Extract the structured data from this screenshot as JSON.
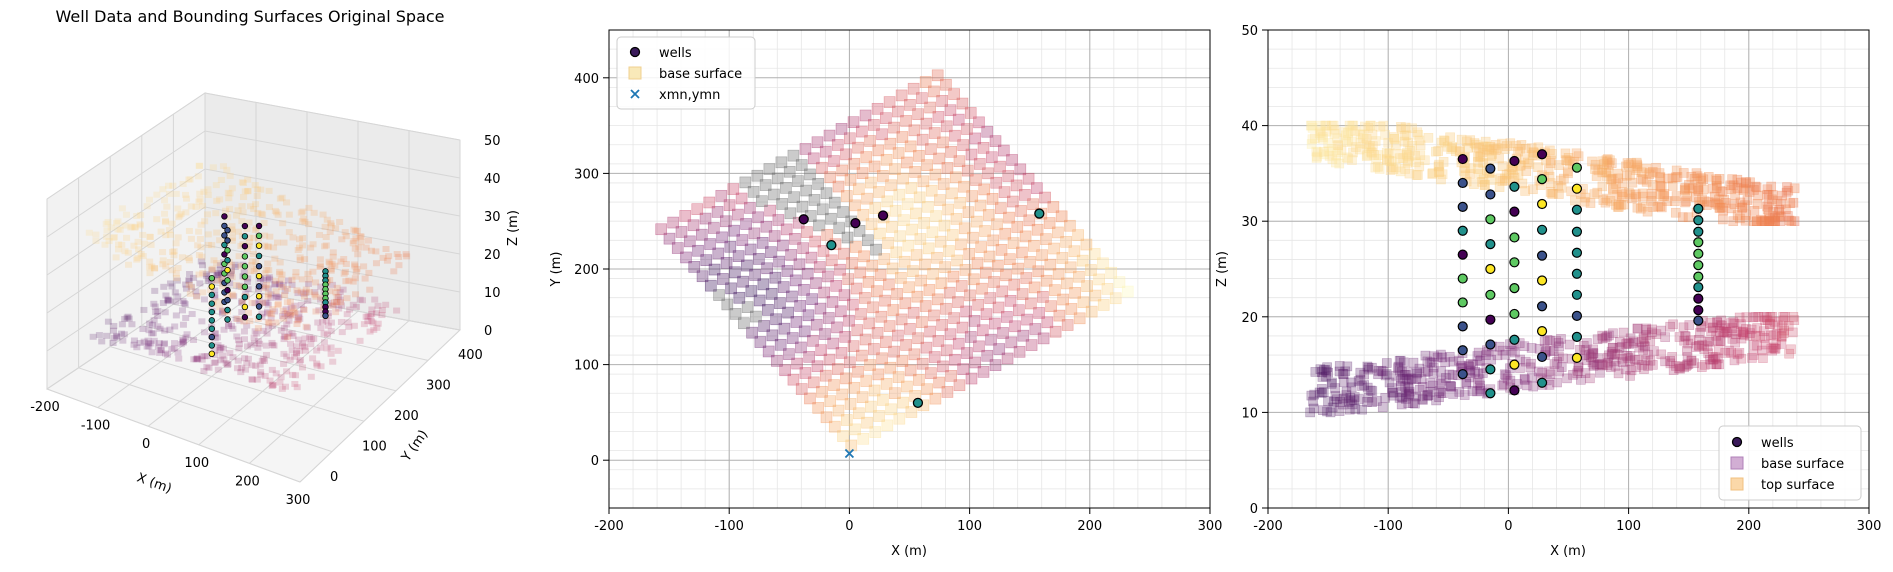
{
  "colors": {
    "base_points": "#f0d8c4",
    "well_cmap": [
      "#440154",
      "#3b528b",
      "#21918c",
      "#5ec962",
      "#fde725"
    ],
    "xmn_marker": "#1f77b4",
    "grid": "#b0b0b0",
    "grid_minor": "#e6e6e6"
  },
  "chart_data": [
    {
      "id": "panel-3d",
      "type": "scatter",
      "title": "Well Data and Bounding Surfaces Original Space",
      "xlabel": "X (m)",
      "ylabel": "Y (m)",
      "zlabel": "Z (m)",
      "xlim": [
        -200,
        300
      ],
      "ylim": [
        -50,
        450
      ],
      "zlim": [
        0,
        50
      ],
      "x_ticks": [
        "-200",
        "-100",
        "0",
        "100",
        "200",
        "300"
      ],
      "y_ticks": [
        "0",
        "100",
        "200",
        "300",
        "400"
      ],
      "z_ticks": [
        "0",
        "10",
        "20",
        "30",
        "40",
        "50"
      ],
      "grid": true
    },
    {
      "id": "panel-plan",
      "type": "scatter",
      "xlabel": "X (m)",
      "ylabel": "Y (m)",
      "xlim": [
        -200,
        300
      ],
      "ylim": [
        -50,
        450
      ],
      "x_ticks": [
        -200,
        -100,
        0,
        100,
        200,
        300
      ],
      "y_ticks": [
        0,
        100,
        200,
        300,
        400
      ],
      "grid": true,
      "minor_grid": true,
      "legend": "top-left",
      "series": [
        {
          "name": "wells",
          "marker": "circle",
          "x": [
            -38,
            -15,
            5,
            28,
            57,
            158
          ],
          "y": [
            252,
            225,
            248,
            256,
            60,
            258
          ],
          "colors": [
            "#440154",
            "#21918c",
            "#440154",
            "#440154",
            "#21918c",
            "#21918c"
          ]
        },
        {
          "name": "base surface",
          "marker": "square"
        },
        {
          "name": "xmn,ymn",
          "marker": "x",
          "x": [
            0
          ],
          "y": [
            7
          ]
        }
      ],
      "surface_extent": {
        "corners": [
          [
            -165,
            243
          ],
          [
            75,
            410
          ],
          [
            240,
            175
          ],
          [
            0,
            7
          ]
        ]
      }
    },
    {
      "id": "panel-section",
      "type": "scatter",
      "xlabel": "X (m)",
      "ylabel": "Z (m)",
      "xlim": [
        -200,
        300
      ],
      "ylim": [
        0,
        50
      ],
      "x_ticks": [
        -200,
        -100,
        0,
        100,
        200,
        300
      ],
      "y_ticks": [
        0,
        10,
        20,
        30,
        40,
        50
      ],
      "grid": true,
      "minor_grid": true,
      "legend": "bottom-right",
      "series": [
        {
          "name": "wells",
          "marker": "circle"
        },
        {
          "name": "base surface",
          "marker": "square"
        },
        {
          "name": "top surface",
          "marker": "square"
        }
      ],
      "wells": [
        {
          "x": -38,
          "z": [
            36.5,
            34.0,
            31.5,
            29.0,
            26.5,
            24.0,
            21.5,
            19.0,
            16.5,
            14.0
          ],
          "colors": [
            "#440154",
            "#3b528b",
            "#3b528b",
            "#21918c",
            "#440154",
            "#5ec962",
            "#5ec962",
            "#3b528b",
            "#3b528b",
            "#3b528b"
          ]
        },
        {
          "x": -15,
          "z": [
            35.5,
            32.8,
            30.2,
            27.6,
            25.0,
            22.3,
            19.7,
            17.1,
            14.5,
            12.0
          ],
          "colors": [
            "#3b528b",
            "#3b528b",
            "#5ec962",
            "#21918c",
            "#fde725",
            "#5ec962",
            "#440154",
            "#3b528b",
            "#21918c",
            "#21918c"
          ]
        },
        {
          "x": 5,
          "z": [
            36.3,
            33.6,
            31.0,
            28.3,
            25.7,
            23.0,
            20.3,
            17.6,
            15.0,
            12.3
          ],
          "colors": [
            "#440154",
            "#21918c",
            "#440154",
            "#5ec962",
            "#5ec962",
            "#5ec962",
            "#5ec962",
            "#21918c",
            "#fde725",
            "#440154"
          ]
        },
        {
          "x": 28,
          "z": [
            37.0,
            34.4,
            31.8,
            29.1,
            26.4,
            23.8,
            21.1,
            18.5,
            15.8,
            13.1
          ],
          "colors": [
            "#440154",
            "#5ec962",
            "#fde725",
            "#21918c",
            "#3b528b",
            "#fde725",
            "#3b528b",
            "#fde725",
            "#3b528b",
            "#21918c"
          ]
        },
        {
          "x": 57,
          "z": [
            35.6,
            33.4,
            31.2,
            28.9,
            26.7,
            24.5,
            22.3,
            20.1,
            17.9,
            15.7
          ],
          "colors": [
            "#5ec962",
            "#fde725",
            "#21918c",
            "#21918c",
            "#21918c",
            "#21918c",
            "#21918c",
            "#3b528b",
            "#21918c",
            "#fde725"
          ]
        },
        {
          "x": 158,
          "z": [
            31.3,
            30.1,
            28.9,
            27.8,
            26.6,
            25.4,
            24.2,
            23.1,
            21.9,
            20.7,
            19.6
          ],
          "colors": [
            "#21918c",
            "#21918c",
            "#21918c",
            "#5ec962",
            "#5ec962",
            "#5ec962",
            "#5ec962",
            "#21918c",
            "#440154",
            "#440154",
            "#3b528b"
          ]
        }
      ],
      "base_surface_range": {
        "z_min": 10,
        "z_max": 20
      },
      "top_surface_range": {
        "z_min": 30,
        "z_max": 40
      }
    }
  ]
}
